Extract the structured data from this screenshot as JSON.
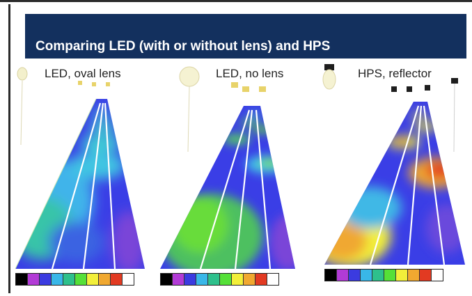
{
  "slide": {
    "title": "Comparing LED (with or without lens) and HPS"
  },
  "panels": [
    {
      "label": "LED, oval lens"
    },
    {
      "label": "LED, no lens"
    },
    {
      "label": "HPS, reflector"
    }
  ],
  "color_scale": {
    "colors": [
      "#000000",
      "#b23bd6",
      "#3b3be0",
      "#39b7e8",
      "#2ec08c",
      "#55e038",
      "#f2ef3a",
      "#f0a830",
      "#e23a22",
      "#ffffff"
    ]
  }
}
